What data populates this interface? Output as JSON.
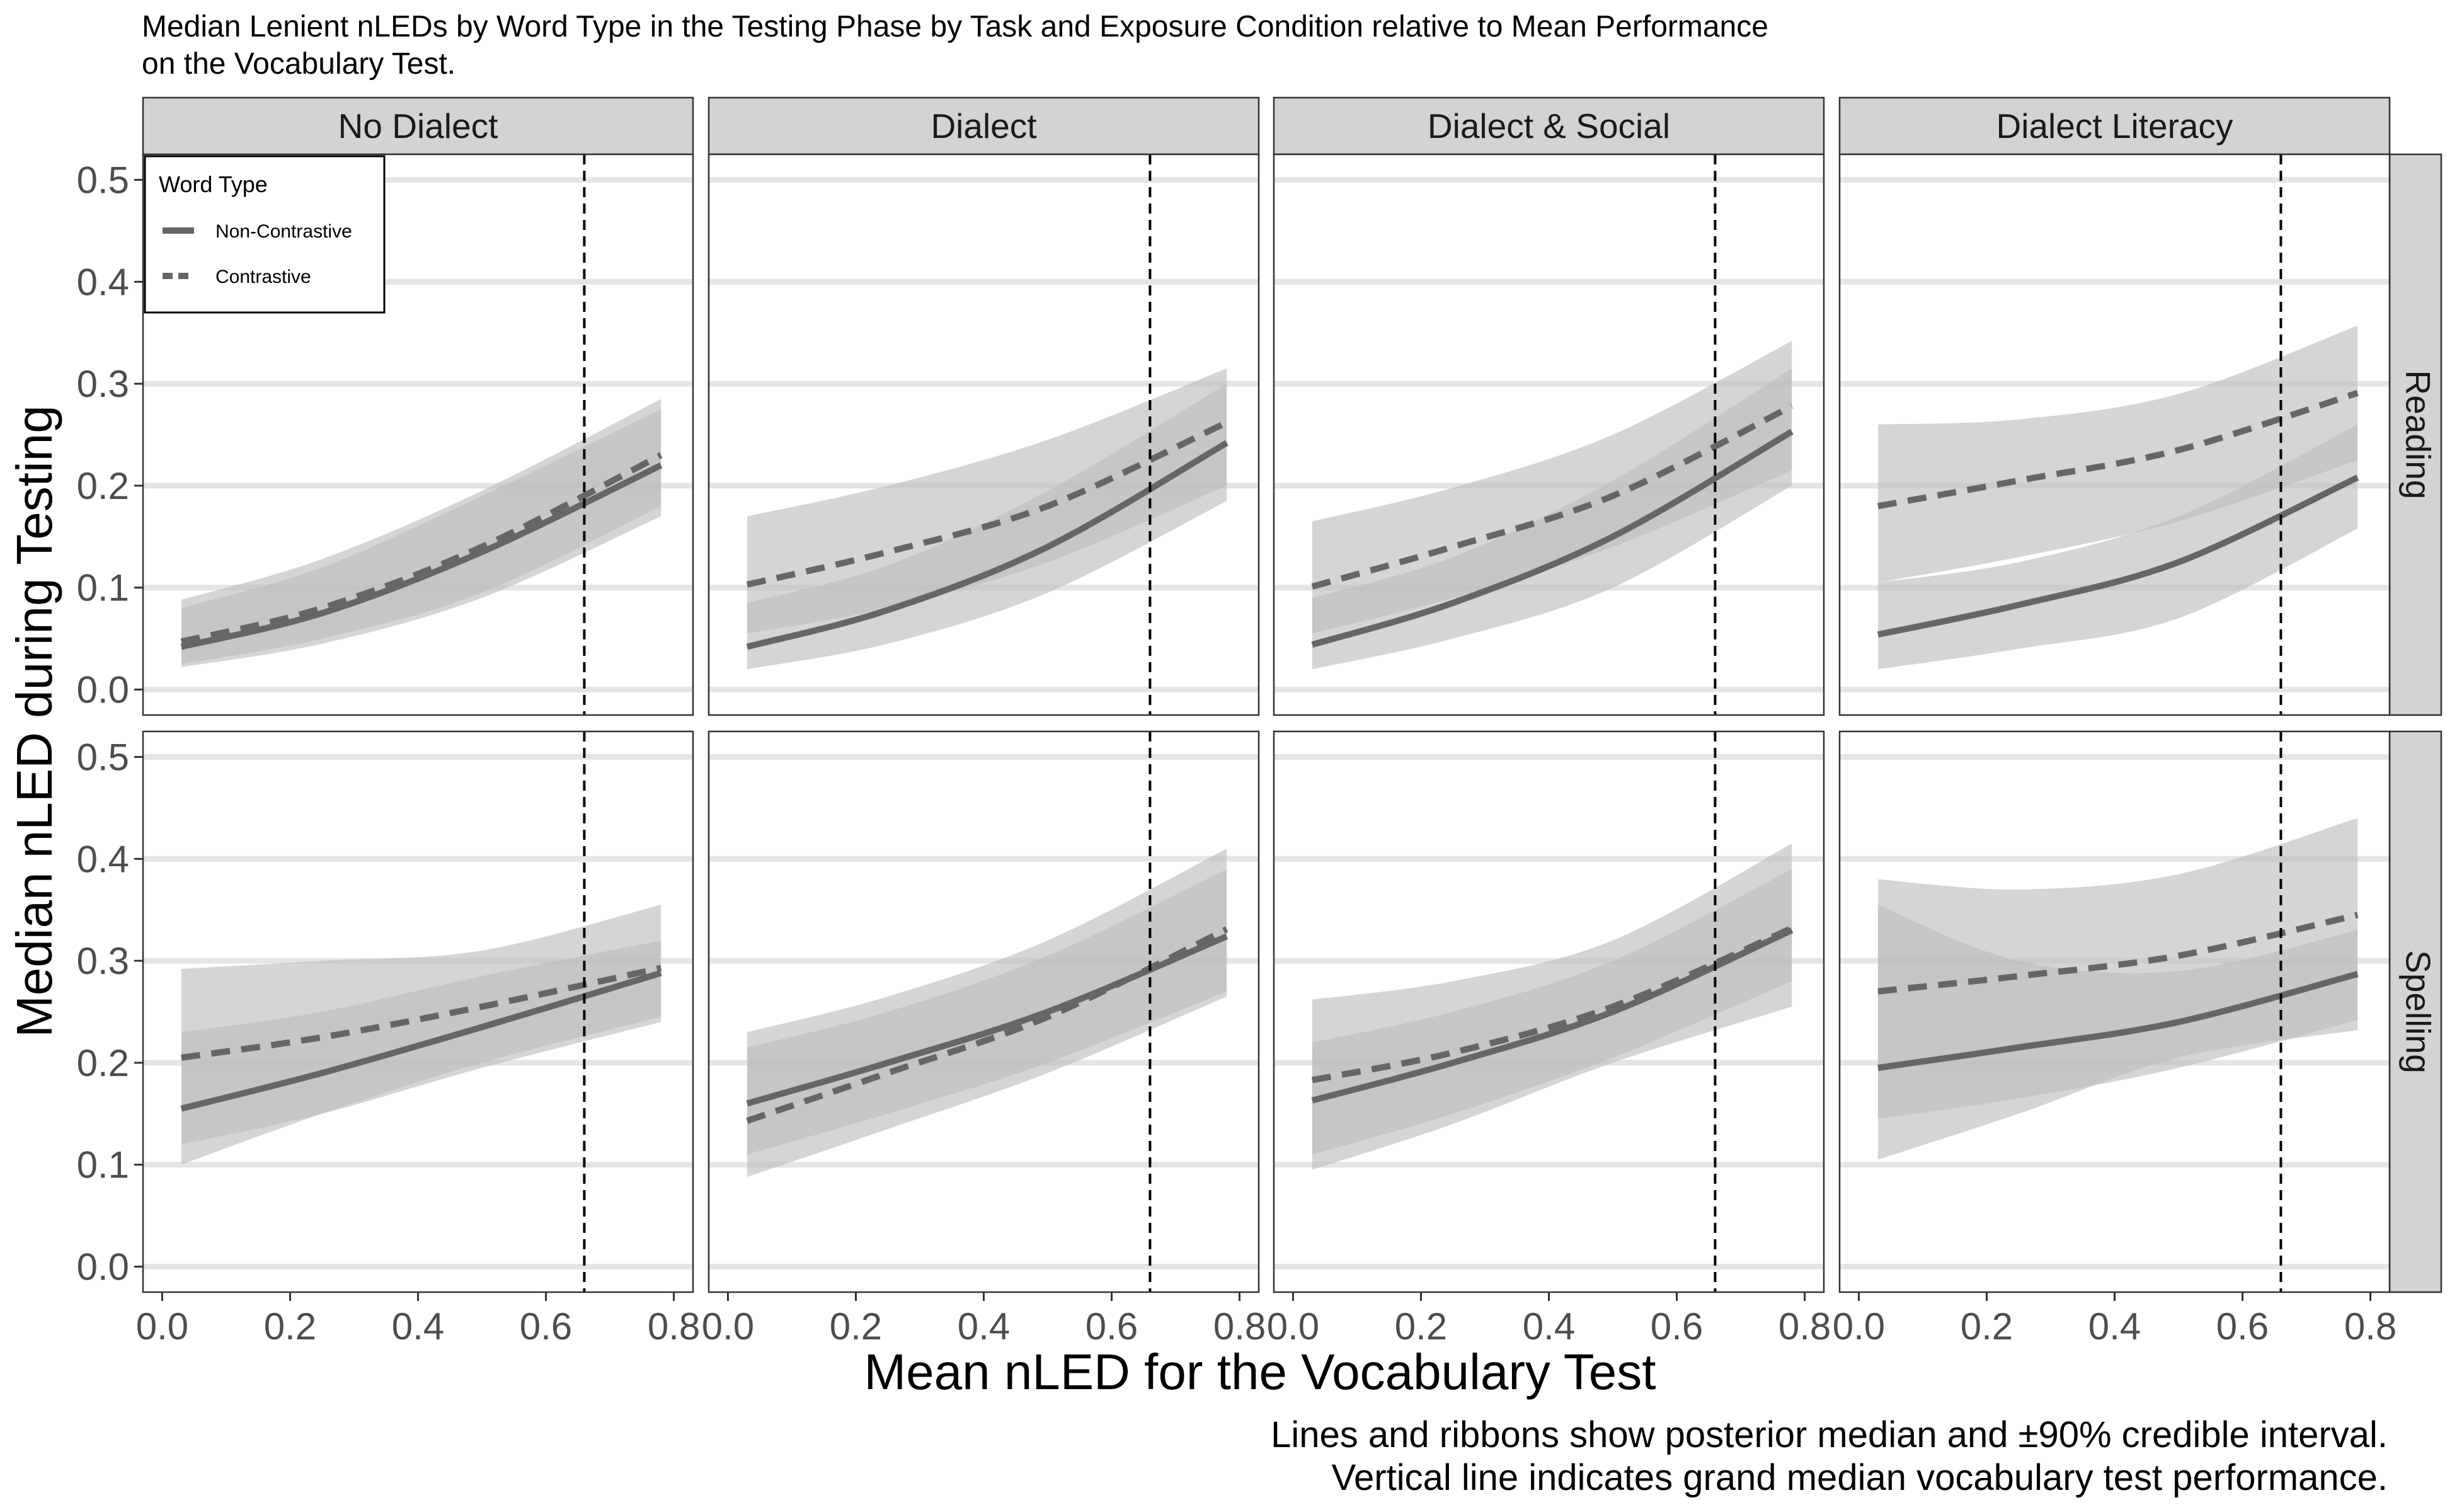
{
  "title_line1": "Median Lenient nLEDs by Word Type in the Testing Phase  by Task and Exposure Condition relative to Mean Performance",
  "title_line2": "on the Vocabulary Test.",
  "caption_line1": "Lines and ribbons show posterior median and ±90% credible interval.",
  "caption_line2": "Vertical line indicates grand median vocabulary test performance.",
  "chart_data": {
    "type": "line",
    "xlabel": "Mean nLED for the Vocabulary Test",
    "ylabel": "Median nLED during Testing",
    "xlim": [
      -0.03,
      0.83
    ],
    "ylim": [
      -0.025,
      0.525
    ],
    "x_ticks": [
      0.0,
      0.2,
      0.4,
      0.6,
      0.8
    ],
    "x_tick_labels": [
      "0.0",
      "0.2",
      "0.4",
      "0.6",
      "0.8"
    ],
    "y_ticks": [
      0.0,
      0.1,
      0.2,
      0.3,
      0.4,
      0.5
    ],
    "y_tick_labels": [
      "0.0",
      "0.1",
      "0.2",
      "0.3",
      "0.4",
      "0.5"
    ],
    "grid": "horizontal major only",
    "reference_line_x": 0.66,
    "columns": [
      "No Dialect",
      "Dialect",
      "Dialect & Social",
      "Dialect Literacy"
    ],
    "rows": [
      "Reading",
      "Spelling"
    ],
    "legend": {
      "title": "Word Type",
      "placement": "top-left inside first panel",
      "entries": [
        {
          "label": "Non-Contrastive",
          "linetype": "solid"
        },
        {
          "label": "Contrastive",
          "linetype": "dashed"
        }
      ]
    },
    "colors": {
      "line": "#666666",
      "ribbon": "#bebebe",
      "ribbon_opacity": 0.65,
      "grid": "#e5e5e5",
      "strip": "#d3d3d3"
    },
    "panels": [
      {
        "column": "No Dialect",
        "row": "Reading",
        "series": [
          {
            "name": "Non-Contrastive",
            "x": [
              0.03,
              0.25,
              0.5,
              0.78
            ],
            "y": [
              0.042,
              0.075,
              0.135,
              0.22
            ],
            "lower": [
              0.022,
              0.045,
              0.09,
              0.17
            ],
            "upper": [
              0.08,
              0.12,
              0.19,
              0.275
            ]
          },
          {
            "name": "Contrastive",
            "x": [
              0.03,
              0.25,
              0.5,
              0.78
            ],
            "y": [
              0.047,
              0.08,
              0.14,
              0.23
            ],
            "lower": [
              0.025,
              0.05,
              0.095,
              0.18
            ],
            "upper": [
              0.088,
              0.128,
              0.195,
              0.285
            ]
          }
        ]
      },
      {
        "column": "Dialect",
        "row": "Reading",
        "series": [
          {
            "name": "Non-Contrastive",
            "x": [
              0.03,
              0.25,
              0.5,
              0.78
            ],
            "y": [
              0.042,
              0.078,
              0.14,
              0.242
            ],
            "lower": [
              0.02,
              0.045,
              0.095,
              0.185
            ],
            "upper": [
              0.085,
              0.122,
              0.195,
              0.3
            ]
          },
          {
            "name": "Contrastive",
            "x": [
              0.03,
              0.25,
              0.5,
              0.78
            ],
            "y": [
              0.103,
              0.135,
              0.18,
              0.262
            ],
            "lower": [
              0.055,
              0.08,
              0.125,
              0.2
            ],
            "upper": [
              0.17,
              0.2,
              0.245,
              0.315
            ]
          }
        ]
      },
      {
        "column": "Dialect & Social",
        "row": "Reading",
        "series": [
          {
            "name": "Non-Contrastive",
            "x": [
              0.03,
              0.25,
              0.5,
              0.78
            ],
            "y": [
              0.044,
              0.085,
              0.15,
              0.253
            ],
            "lower": [
              0.02,
              0.05,
              0.1,
              0.2
            ],
            "upper": [
              0.09,
              0.13,
              0.205,
              0.315
            ]
          },
          {
            "name": "Contrastive",
            "x": [
              0.03,
              0.25,
              0.5,
              0.78
            ],
            "y": [
              0.101,
              0.14,
              0.19,
              0.278
            ],
            "lower": [
              0.055,
              0.09,
              0.14,
              0.215
            ],
            "upper": [
              0.165,
              0.198,
              0.25,
              0.342
            ]
          }
        ]
      },
      {
        "column": "Dialect Literacy",
        "row": "Reading",
        "series": [
          {
            "name": "Non-Contrastive",
            "x": [
              0.03,
              0.25,
              0.5,
              0.78
            ],
            "y": [
              0.054,
              0.083,
              0.125,
              0.208
            ],
            "lower": [
              0.02,
              0.04,
              0.07,
              0.158
            ],
            "upper": [
              0.105,
              0.125,
              0.17,
              0.26
            ]
          },
          {
            "name": "Contrastive",
            "x": [
              0.03,
              0.25,
              0.5,
              0.78
            ],
            "y": [
              0.18,
              0.205,
              0.235,
              0.291
            ],
            "lower": [
              0.105,
              0.13,
              0.165,
              0.225
            ],
            "upper": [
              0.26,
              0.265,
              0.29,
              0.357
            ]
          }
        ]
      },
      {
        "column": "No Dialect",
        "row": "Spelling",
        "series": [
          {
            "name": "Non-Contrastive",
            "x": [
              0.03,
              0.25,
              0.5,
              0.78
            ],
            "y": [
              0.155,
              0.19,
              0.235,
              0.288
            ],
            "lower": [
              0.12,
              0.15,
              0.195,
              0.24
            ],
            "upper": [
              0.23,
              0.25,
              0.285,
              0.32
            ]
          },
          {
            "name": "Contrastive",
            "x": [
              0.03,
              0.25,
              0.5,
              0.78
            ],
            "y": [
              0.205,
              0.225,
              0.255,
              0.293
            ],
            "lower": [
              0.1,
              0.15,
              0.2,
              0.245
            ],
            "upper": [
              0.292,
              0.3,
              0.31,
              0.355
            ]
          }
        ]
      },
      {
        "column": "Dialect",
        "row": "Spelling",
        "series": [
          {
            "name": "Non-Contrastive",
            "x": [
              0.03,
              0.25,
              0.5,
              0.78
            ],
            "y": [
              0.16,
              0.2,
              0.25,
              0.324
            ],
            "lower": [
              0.11,
              0.15,
              0.2,
              0.27
            ],
            "upper": [
              0.215,
              0.25,
              0.305,
              0.39
            ]
          },
          {
            "name": "Contrastive",
            "x": [
              0.03,
              0.25,
              0.5,
              0.78
            ],
            "y": [
              0.143,
              0.19,
              0.245,
              0.331
            ],
            "lower": [
              0.088,
              0.135,
              0.19,
              0.265
            ],
            "upper": [
              0.23,
              0.265,
              0.32,
              0.41
            ]
          }
        ]
      },
      {
        "column": "Dialect & Social",
        "row": "Spelling",
        "series": [
          {
            "name": "Non-Contrastive",
            "x": [
              0.03,
              0.25,
              0.5,
              0.78
            ],
            "y": [
              0.163,
              0.2,
              0.25,
              0.33
            ],
            "lower": [
              0.11,
              0.15,
              0.205,
              0.28
            ],
            "upper": [
              0.22,
              0.25,
              0.3,
              0.39
            ]
          },
          {
            "name": "Contrastive",
            "x": [
              0.03,
              0.25,
              0.5,
              0.78
            ],
            "y": [
              0.183,
              0.21,
              0.255,
              0.332
            ],
            "lower": [
              0.095,
              0.14,
              0.2,
              0.255
            ],
            "upper": [
              0.262,
              0.28,
              0.32,
              0.415
            ]
          }
        ]
      },
      {
        "column": "Dialect Literacy",
        "row": "Spelling",
        "series": [
          {
            "name": "Non-Contrastive",
            "x": [
              0.03,
              0.25,
              0.5,
              0.78
            ],
            "y": [
              0.195,
              0.215,
              0.24,
              0.287
            ],
            "lower": [
              0.145,
              0.165,
              0.195,
              0.242
            ],
            "upper": [
              0.355,
              0.3,
              0.29,
              0.33
            ]
          },
          {
            "name": "Contrastive",
            "x": [
              0.03,
              0.25,
              0.5,
              0.78
            ],
            "y": [
              0.27,
              0.285,
              0.305,
              0.345
            ],
            "lower": [
              0.105,
              0.15,
              0.205,
              0.232
            ],
            "upper": [
              0.38,
              0.37,
              0.385,
              0.44
            ]
          }
        ]
      }
    ]
  }
}
